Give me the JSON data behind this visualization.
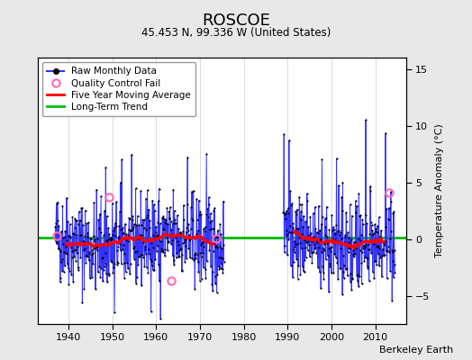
{
  "title": "ROSCOE",
  "subtitle": "45.453 N, 99.336 W (United States)",
  "ylabel": "Temperature Anomaly (°C)",
  "credit": "Berkeley Earth",
  "xlim": [
    1933,
    2017
  ],
  "ylim": [
    -7.5,
    16
  ],
  "yticks": [
    -5,
    0,
    5,
    10,
    15
  ],
  "xticks": [
    1940,
    1950,
    1960,
    1970,
    1980,
    1990,
    2000,
    2010
  ],
  "long_term_trend_y": 0.15,
  "bg_color": "#e8e8e8",
  "plot_bg_color": "#ffffff",
  "raw_color": "#3333ff",
  "raw_fill_color": "#aaaaff",
  "dot_color": "#000000",
  "ma_color": "#ff0000",
  "trend_color": "#00bb00",
  "qc_color": "#ff69b4",
  "segment1_start": 1937.0,
  "segment1_end": 1975.5,
  "segment2_start": 1989.0,
  "segment2_end": 2014.5,
  "qc_points": [
    [
      1937.3,
      0.25
    ],
    [
      1949.3,
      3.7
    ],
    [
      1963.5,
      -3.7
    ],
    [
      1973.7,
      0.05
    ],
    [
      2013.2,
      4.1
    ]
  ],
  "seed": 42
}
